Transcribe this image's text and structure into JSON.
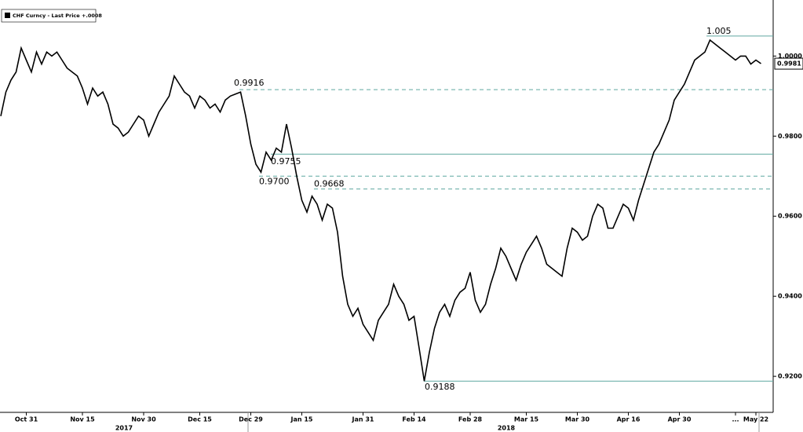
{
  "chart_data": {
    "type": "line",
    "categories": [
      null,
      null,
      null,
      null,
      null,
      "Oct 31",
      null,
      null,
      null,
      null,
      null,
      null,
      null,
      null,
      null,
      null,
      "Nov 15",
      null,
      null,
      null,
      null,
      null,
      null,
      null,
      null,
      null,
      null,
      null,
      "Nov 30",
      null,
      null,
      null,
      null,
      null,
      null,
      null,
      null,
      null,
      null,
      "Dec 15",
      null,
      null,
      null,
      null,
      null,
      null,
      null,
      null,
      null,
      "Dec 29",
      null,
      null,
      null,
      null,
      null,
      null,
      null,
      null,
      null,
      "Jan 15",
      null,
      null,
      null,
      null,
      null,
      null,
      null,
      null,
      null,
      null,
      null,
      "Jan 31",
      null,
      null,
      null,
      null,
      null,
      null,
      null,
      null,
      null,
      "Feb 14",
      null,
      null,
      null,
      null,
      null,
      null,
      null,
      null,
      null,
      null,
      "Feb 28",
      null,
      null,
      null,
      null,
      null,
      null,
      null,
      null,
      null,
      null,
      "Mar 15",
      null,
      null,
      null,
      null,
      null,
      null,
      null,
      null,
      null,
      "Mar 30",
      null,
      null,
      null,
      null,
      null,
      null,
      null,
      null,
      null,
      "Apr 16",
      null,
      null,
      null,
      null,
      null,
      null,
      null,
      null,
      null,
      "Apr 30",
      null,
      null,
      null,
      null,
      null,
      null,
      null,
      null,
      null,
      null,
      "...",
      null,
      null,
      null,
      "May 22",
      null
    ],
    "year_labels": [
      "2017",
      "2018"
    ],
    "series": [
      {
        "name": "CHF Curncy - Last Price +.0008",
        "color": "#000000",
        "values": [
          0.985,
          0.991,
          0.994,
          0.996,
          1.002,
          0.999,
          0.996,
          1.001,
          0.998,
          1.001,
          1.0,
          1.001,
          0.999,
          0.997,
          0.996,
          0.995,
          0.992,
          0.988,
          0.992,
          0.99,
          0.991,
          0.988,
          0.983,
          0.982,
          0.98,
          0.981,
          0.983,
          0.985,
          0.984,
          0.98,
          0.983,
          0.986,
          0.988,
          0.99,
          0.995,
          0.993,
          0.991,
          0.99,
          0.987,
          0.99,
          0.989,
          0.987,
          0.988,
          0.986,
          0.989,
          0.99,
          0.9905,
          0.991,
          0.985,
          0.978,
          0.973,
          0.971,
          0.976,
          0.974,
          0.977,
          0.976,
          0.983,
          0.977,
          0.97,
          0.964,
          0.961,
          0.965,
          0.963,
          0.959,
          0.963,
          0.962,
          0.956,
          0.945,
          0.938,
          0.935,
          0.937,
          0.933,
          0.931,
          0.929,
          0.934,
          0.936,
          0.938,
          0.943,
          0.94,
          0.938,
          0.934,
          0.935,
          0.927,
          0.9188,
          0.926,
          0.932,
          0.936,
          0.938,
          0.935,
          0.939,
          0.941,
          0.942,
          0.946,
          0.939,
          0.936,
          0.938,
          0.943,
          0.947,
          0.952,
          0.95,
          0.947,
          0.944,
          0.948,
          0.951,
          0.953,
          0.955,
          0.952,
          0.948,
          0.947,
          0.946,
          0.945,
          0.952,
          0.957,
          0.956,
          0.954,
          0.955,
          0.96,
          0.963,
          0.962,
          0.957,
          0.957,
          0.96,
          0.963,
          0.962,
          0.959,
          0.964,
          0.968,
          0.972,
          0.976,
          0.978,
          0.981,
          0.984,
          0.989,
          0.991,
          0.993,
          0.996,
          0.999,
          1.0,
          1.001,
          1.004,
          1.003,
          1.002,
          1.001,
          1.0,
          0.999,
          1.0,
          1.0,
          0.998,
          0.999,
          0.9981
        ]
      }
    ],
    "levels": [
      {
        "value": 1.005,
        "label": "1.005",
        "style": "solid"
      },
      {
        "value": 0.9916,
        "label": "0.9916",
        "style": "dashed"
      },
      {
        "value": 0.9755,
        "label": "0.9755",
        "style": "solid"
      },
      {
        "value": 0.97,
        "label": "0.9700",
        "style": "dashed"
      },
      {
        "value": 0.9668,
        "label": "0.9668",
        "style": "dashed"
      },
      {
        "value": 0.9188,
        "label": "0.9188",
        "style": "solid"
      }
    ],
    "ylim": [
      0.911,
      1.014
    ],
    "yticks": [
      {
        "value": 0.92,
        "label": "0.9200"
      },
      {
        "value": 0.94,
        "label": "0.9400"
      },
      {
        "value": 0.96,
        "label": "0.9600"
      },
      {
        "value": 0.98,
        "label": "0.9800"
      },
      {
        "value": 1.0,
        "label": "1.0000"
      }
    ],
    "grid": false
  }
}
